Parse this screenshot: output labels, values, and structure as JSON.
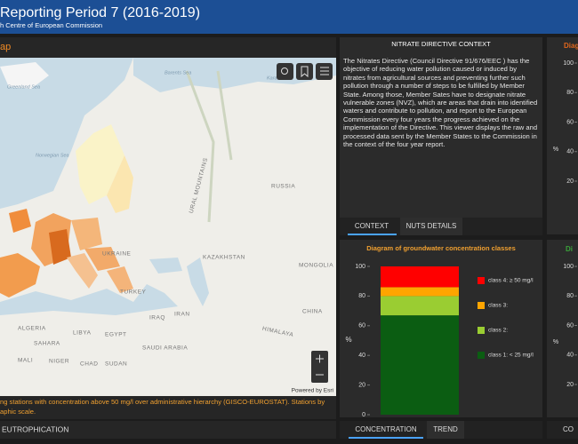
{
  "header": {
    "title": "Reporting Period 7 (2016-2019)",
    "subtitle": "h Centre of European Commission"
  },
  "map_panel": {
    "title": "ap",
    "labels": [
      "Greenland Sea",
      "Norwegian Sea",
      "Barents Sea",
      "Kara Sea",
      "RUSSIA",
      "URAL MOUNTAINS",
      "UKRAINE",
      "KAZAKHSTAN",
      "MONGOLIA",
      "TURKEY",
      "IRAN",
      "IRAQ",
      "SAUDI ARABIA",
      "CHINA",
      "EGYPT",
      "LIBYA",
      "ALGERIA",
      "SAHARA",
      "MALI",
      "NIGER",
      "CHAD",
      "SUDAN",
      "HIMALAYA"
    ],
    "attribution": "Powered by Esri",
    "caption": [
      "ng stations with concentration above 50 mg/l over administrative hierarchy (GISCO-EUROSTAT). Stations by",
      "aphic scale."
    ],
    "tab": "EUTROPHICATION"
  },
  "context_panel": {
    "title": "NITRATE DIRECTIVE CONTEXT",
    "text": "The  Nitrates Directive (Council Directive 91/676/EEC ) has the objective of reducing water pollution caused or induced by nitrates from agricultural sources and preventing further such pollution through a number of steps to be fulfilled by Member State. Among those, Member Sates have to designate nitrate vulnerable zones (NVZ), which are areas that drain into identified waters and contribute to pollution, and report to the European Commission every four years the progress achieved on the implementation of the Directive. This viewer displays the raw and processed data sent by the Member States to the Commission in the context of the four year report.",
    "tabs": [
      "CONTEXT",
      "NUTS DETAILS"
    ]
  },
  "chart_data": {
    "type": "stacked-bar",
    "title": "Diagram of groundwater concentration classes",
    "y_label": "%",
    "ylim": [
      0,
      100
    ],
    "yticks": [
      0,
      20,
      40,
      60,
      80,
      100
    ],
    "series": [
      {
        "name": "class 1: < 25 mg/l",
        "color": "#0b5d12",
        "values": [
          67
        ]
      },
      {
        "name": "class 2:",
        "color": "#9acd32",
        "values": [
          13
        ]
      },
      {
        "name": "class 3:",
        "color": "#ffa500",
        "values": [
          6
        ]
      },
      {
        "name": "class 4: ≥ 50 mg/l",
        "color": "#ff0000",
        "values": [
          14
        ]
      }
    ],
    "tabs": [
      "CONCENTRATION",
      "TREND"
    ]
  },
  "right_top": {
    "title": "Diag",
    "y_label": "%",
    "yticks": [
      100,
      80,
      60,
      40,
      20
    ]
  },
  "right_bottom": {
    "title": "Di",
    "y_label": "%",
    "yticks": [
      100,
      80,
      60,
      40,
      20
    ],
    "tab": "CO"
  }
}
